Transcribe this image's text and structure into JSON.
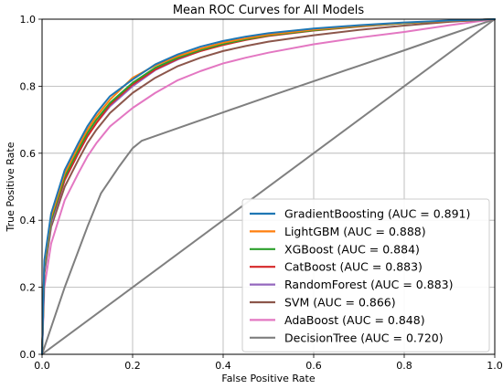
{
  "chart_data": {
    "type": "line",
    "title": "Mean ROC Curves for All Models",
    "xlabel": "False Positive Rate",
    "ylabel": "True Positive Rate",
    "xlim": [
      0.0,
      1.0
    ],
    "ylim": [
      0.0,
      1.0
    ],
    "xticks": [
      "0.0",
      "0.2",
      "0.4",
      "0.6",
      "0.8",
      "1.0"
    ],
    "yticks": [
      "0.0",
      "0.2",
      "0.4",
      "0.6",
      "0.8",
      "1.0"
    ],
    "grid": true,
    "legend_position": "lower-right",
    "series": [
      {
        "name": "GradientBoosting (AUC = 0.891)",
        "color": "#1f77b4",
        "x": [
          0,
          0.005,
          0.02,
          0.05,
          0.08,
          0.1,
          0.12,
          0.15,
          0.2,
          0.25,
          0.3,
          0.35,
          0.4,
          0.45,
          0.5,
          0.6,
          0.7,
          0.8,
          0.9,
          1.0
        ],
        "y": [
          0,
          0.28,
          0.42,
          0.55,
          0.63,
          0.68,
          0.72,
          0.77,
          0.82,
          0.865,
          0.895,
          0.918,
          0.935,
          0.948,
          0.958,
          0.972,
          0.982,
          0.99,
          0.996,
          1.0
        ]
      },
      {
        "name": "LightGBM (AUC = 0.888)",
        "color": "#ff7f0e",
        "x": [
          0,
          0.005,
          0.02,
          0.05,
          0.08,
          0.1,
          0.12,
          0.15,
          0.2,
          0.25,
          0.3,
          0.35,
          0.4,
          0.45,
          0.5,
          0.6,
          0.7,
          0.8,
          0.9,
          1.0
        ],
        "y": [
          0,
          0.27,
          0.41,
          0.54,
          0.62,
          0.67,
          0.71,
          0.76,
          0.825,
          0.862,
          0.89,
          0.912,
          0.93,
          0.943,
          0.954,
          0.969,
          0.98,
          0.989,
          0.995,
          1.0
        ]
      },
      {
        "name": "XGBoost (AUC = 0.884)",
        "color": "#2ca02c",
        "x": [
          0,
          0.005,
          0.02,
          0.05,
          0.08,
          0.1,
          0.12,
          0.15,
          0.2,
          0.25,
          0.3,
          0.35,
          0.4,
          0.45,
          0.5,
          0.6,
          0.7,
          0.8,
          0.9,
          1.0
        ],
        "y": [
          0,
          0.26,
          0.4,
          0.53,
          0.61,
          0.66,
          0.7,
          0.75,
          0.81,
          0.855,
          0.885,
          0.908,
          0.926,
          0.94,
          0.952,
          0.967,
          0.979,
          0.988,
          0.995,
          1.0
        ]
      },
      {
        "name": "CatBoost (AUC = 0.883)",
        "color": "#d62728",
        "x": [
          0,
          0.005,
          0.02,
          0.05,
          0.08,
          0.1,
          0.12,
          0.15,
          0.2,
          0.25,
          0.3,
          0.35,
          0.4,
          0.45,
          0.5,
          0.6,
          0.7,
          0.8,
          0.9,
          1.0
        ],
        "y": [
          0,
          0.26,
          0.4,
          0.52,
          0.6,
          0.65,
          0.69,
          0.745,
          0.805,
          0.85,
          0.882,
          0.905,
          0.923,
          0.938,
          0.95,
          0.966,
          0.978,
          0.988,
          0.995,
          1.0
        ]
      },
      {
        "name": "RandomForest (AUC = 0.883)",
        "color": "#9467bd",
        "x": [
          0,
          0.005,
          0.02,
          0.05,
          0.08,
          0.1,
          0.12,
          0.15,
          0.2,
          0.25,
          0.3,
          0.35,
          0.4,
          0.45,
          0.5,
          0.6,
          0.7,
          0.8,
          0.9,
          1.0
        ],
        "y": [
          0,
          0.25,
          0.39,
          0.52,
          0.6,
          0.65,
          0.69,
          0.74,
          0.8,
          0.848,
          0.88,
          0.905,
          0.925,
          0.94,
          0.952,
          0.968,
          0.98,
          0.989,
          0.995,
          1.0
        ]
      },
      {
        "name": "SVM (AUC = 0.866)",
        "color": "#8c564b",
        "x": [
          0,
          0.005,
          0.02,
          0.05,
          0.08,
          0.1,
          0.12,
          0.15,
          0.2,
          0.25,
          0.3,
          0.35,
          0.4,
          0.45,
          0.5,
          0.6,
          0.7,
          0.8,
          0.9,
          1.0
        ],
        "y": [
          0,
          0.24,
          0.38,
          0.5,
          0.58,
          0.63,
          0.67,
          0.72,
          0.78,
          0.825,
          0.86,
          0.885,
          0.905,
          0.92,
          0.933,
          0.952,
          0.968,
          0.981,
          0.992,
          1.0
        ]
      },
      {
        "name": "AdaBoost (AUC = 0.848)",
        "color": "#e377c2",
        "x": [
          0,
          0.005,
          0.02,
          0.05,
          0.08,
          0.1,
          0.12,
          0.15,
          0.2,
          0.25,
          0.3,
          0.35,
          0.4,
          0.45,
          0.5,
          0.6,
          0.7,
          0.8,
          0.9,
          1.0
        ],
        "y": [
          0,
          0.2,
          0.33,
          0.46,
          0.54,
          0.59,
          0.63,
          0.68,
          0.735,
          0.78,
          0.818,
          0.845,
          0.868,
          0.885,
          0.9,
          0.925,
          0.945,
          0.962,
          0.982,
          1.0
        ]
      },
      {
        "name": "DecisionTree (AUC = 0.720)",
        "color": "#7f7f7f",
        "x": [
          0,
          0.05,
          0.1,
          0.13,
          0.17,
          0.2,
          0.22,
          0.3,
          0.4,
          0.5,
          0.6,
          0.7,
          0.8,
          0.9,
          1.0
        ],
        "y": [
          0,
          0.2,
          0.38,
          0.48,
          0.56,
          0.615,
          0.637,
          0.675,
          0.722,
          0.769,
          0.815,
          0.861,
          0.907,
          0.954,
          1.0
        ]
      },
      {
        "name": "",
        "color": "#808080",
        "x": [
          0,
          1
        ],
        "y": [
          0,
          1
        ]
      }
    ]
  }
}
